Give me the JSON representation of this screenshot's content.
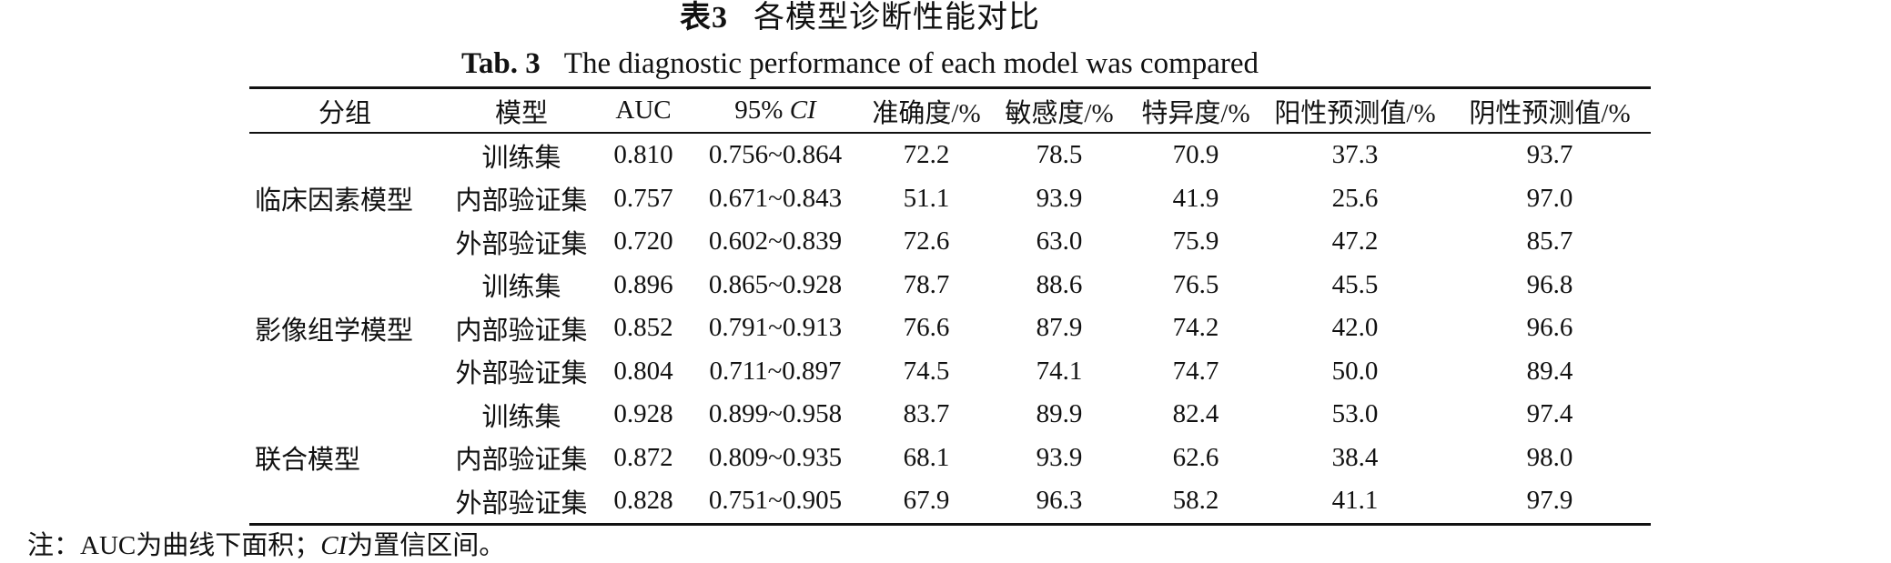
{
  "title_cn": {
    "label": "表3",
    "text": "各模型诊断性能对比"
  },
  "title_en": {
    "label": "Tab. 3",
    "text": "The diagnostic performance of each model was compared"
  },
  "headers": {
    "group": "分组",
    "model": "模型",
    "auc": "AUC",
    "ci_prefix": "95% ",
    "ci_italic": "CI",
    "accuracy": "准确度/%",
    "sensitivity": "敏感度/%",
    "specificity": "特异度/%",
    "ppv": "阳性预测值/%",
    "npv": "阴性预测值/%"
  },
  "groups": [
    {
      "name": "临床因素模型",
      "rows": [
        {
          "model": "训练集",
          "auc": "0.810",
          "ci": "0.756~0.864",
          "accuracy": "72.2",
          "sensitivity": "78.5",
          "specificity": "70.9",
          "ppv": "37.3",
          "npv": "93.7"
        },
        {
          "model": "内部验证集",
          "auc": "0.757",
          "ci": "0.671~0.843",
          "accuracy": "51.1",
          "sensitivity": "93.9",
          "specificity": "41.9",
          "ppv": "25.6",
          "npv": "97.0"
        },
        {
          "model": "外部验证集",
          "auc": "0.720",
          "ci": "0.602~0.839",
          "accuracy": "72.6",
          "sensitivity": "63.0",
          "specificity": "75.9",
          "ppv": "47.2",
          "npv": "85.7"
        }
      ]
    },
    {
      "name": "影像组学模型",
      "rows": [
        {
          "model": "训练集",
          "auc": "0.896",
          "ci": "0.865~0.928",
          "accuracy": "78.7",
          "sensitivity": "88.6",
          "specificity": "76.5",
          "ppv": "45.5",
          "npv": "96.8"
        },
        {
          "model": "内部验证集",
          "auc": "0.852",
          "ci": "0.791~0.913",
          "accuracy": "76.6",
          "sensitivity": "87.9",
          "specificity": "74.2",
          "ppv": "42.0",
          "npv": "96.6"
        },
        {
          "model": "外部验证集",
          "auc": "0.804",
          "ci": "0.711~0.897",
          "accuracy": "74.5",
          "sensitivity": "74.1",
          "specificity": "74.7",
          "ppv": "50.0",
          "npv": "89.4"
        }
      ]
    },
    {
      "name": "联合模型",
      "rows": [
        {
          "model": "训练集",
          "auc": "0.928",
          "ci": "0.899~0.958",
          "accuracy": "83.7",
          "sensitivity": "89.9",
          "specificity": "82.4",
          "ppv": "53.0",
          "npv": "97.4"
        },
        {
          "model": "内部验证集",
          "auc": "0.872",
          "ci": "0.809~0.935",
          "accuracy": "68.1",
          "sensitivity": "93.9",
          "specificity": "62.6",
          "ppv": "38.4",
          "npv": "98.0"
        },
        {
          "model": "外部验证集",
          "auc": "0.828",
          "ci": "0.751~0.905",
          "accuracy": "67.9",
          "sensitivity": "96.3",
          "specificity": "58.2",
          "ppv": "41.1",
          "npv": "97.9"
        }
      ]
    }
  ],
  "note": {
    "prefix": "注：AUC为曲线下面积；",
    "italic": "CI",
    "suffix": "为置信区间。"
  }
}
